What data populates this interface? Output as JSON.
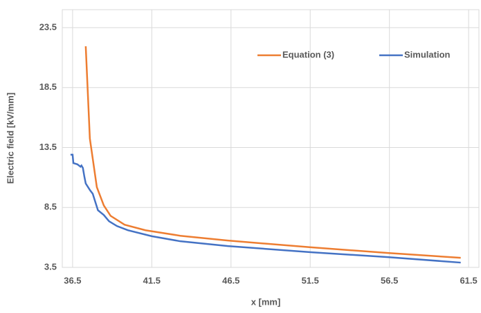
{
  "chart_data": {
    "type": "line",
    "xlabel": "x [mm]",
    "ylabel": "Electric field [kV/mm]",
    "xlim": [
      35.85,
      62.15
    ],
    "xticks": [
      36.5,
      41.5,
      46.5,
      51.5,
      56.5,
      61.5
    ],
    "ylim": [
      3.5,
      25
    ],
    "yticks": [
      3.5,
      8.5,
      13.5,
      18.5,
      23.5
    ],
    "grid": true,
    "legend": "top-right",
    "series": [
      {
        "name": "Equation (3)",
        "color": "#ed7d31",
        "x": [
          37.33,
          37.59,
          38.03,
          38.47,
          38.9,
          39.78,
          41.1,
          43.3,
          46.3,
          51.6,
          56.4,
          61.0
        ],
        "values": [
          21.95,
          14.25,
          10.2,
          8.67,
          7.8,
          7.06,
          6.6,
          6.14,
          5.74,
          5.17,
          4.7,
          4.3
        ]
      },
      {
        "name": "Simulation",
        "color": "#4472c4",
        "x": [
          36.37,
          36.5,
          36.55,
          36.8,
          37.0,
          37.06,
          37.15,
          37.24,
          37.33,
          37.6,
          37.77,
          38.1,
          38.47,
          38.8,
          39.3,
          39.99,
          41.5,
          43.3,
          46.3,
          51.6,
          56.4,
          61.0
        ],
        "values": [
          12.9,
          12.9,
          12.2,
          12.1,
          11.9,
          12.0,
          11.8,
          11.1,
          10.5,
          9.94,
          9.65,
          8.27,
          7.87,
          7.35,
          6.95,
          6.6,
          6.1,
          5.68,
          5.28,
          4.76,
          4.36,
          3.9
        ]
      }
    ]
  }
}
